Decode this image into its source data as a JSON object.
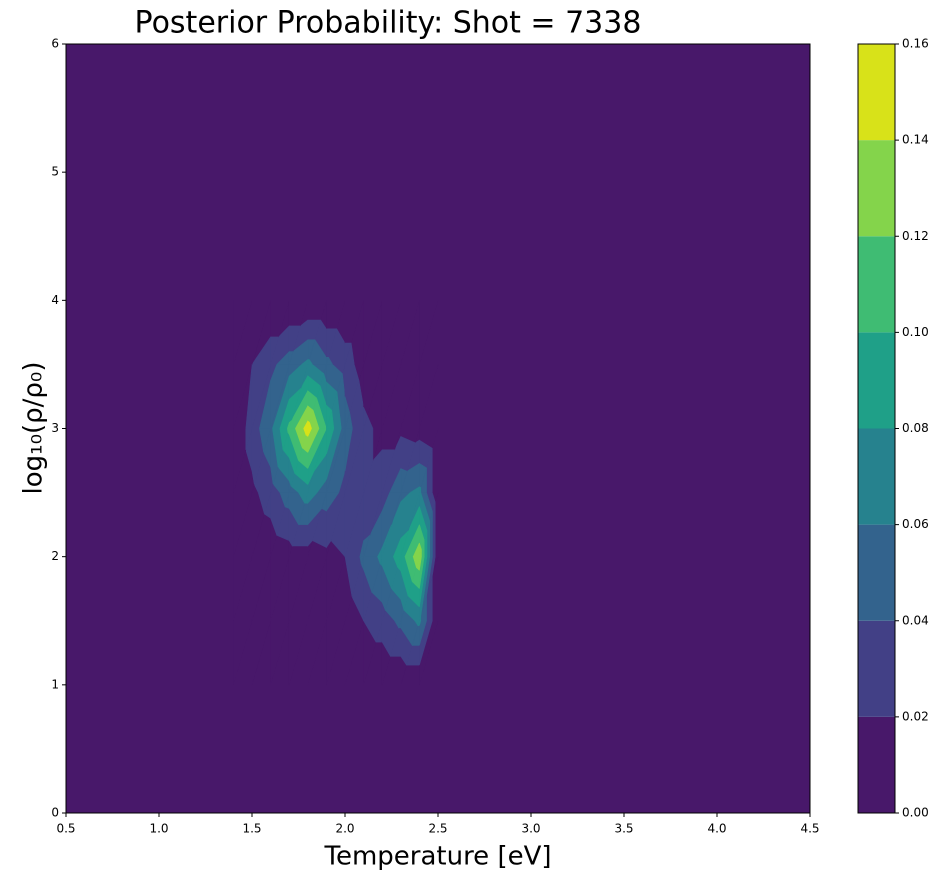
{
  "chart_data": {
    "type": "contourf",
    "title": "Posterior Probability: Shot = 7338",
    "xlabel": "Temperature [eV]",
    "ylabel": "log₁₀(ρ/ρ₀)",
    "x": [
      1.4,
      1.5,
      1.6,
      1.7,
      1.8,
      1.9,
      2.0,
      2.1,
      2.2,
      2.3,
      2.4,
      2.5
    ],
    "y": [
      1,
      1.5,
      2,
      2.5,
      3,
      3.5,
      4
    ],
    "z": [
      [
        0,
        0,
        0,
        0,
        0,
        0,
        0,
        0,
        0,
        0,
        0,
        0
      ],
      [
        0,
        0,
        0,
        0,
        0,
        0,
        0.005,
        0.02,
        0.03,
        0.045,
        0.065,
        0
      ],
      [
        0,
        0,
        0.005,
        0.01,
        0.01,
        0.015,
        0.02,
        0.045,
        0.065,
        0.09,
        0.135,
        0
      ],
      [
        0,
        0.015,
        0.03,
        0.05,
        0.07,
        0.05,
        0.035,
        0.025,
        0.03,
        0.055,
        0.065,
        0
      ],
      [
        0,
        0.03,
        0.055,
        0.105,
        0.15,
        0.1,
        0.05,
        0.025,
        0.015,
        0.015,
        0.01,
        0
      ],
      [
        0,
        0.02,
        0.035,
        0.05,
        0.065,
        0.045,
        0.03,
        0.01,
        0,
        0,
        0,
        0
      ],
      [
        0,
        0,
        0,
        0,
        0,
        0,
        0,
        0,
        0,
        0,
        0,
        0
      ]
    ],
    "levels": [
      {
        "value": 0,
        "label": "0.00"
      },
      0.02,
      0.04,
      0.06,
      0.08,
      {
        "value": 0.1,
        "label": "0.10"
      },
      0.12,
      0.14,
      0.16
    ],
    "colors": [
      "#48186a",
      "#424086",
      "#33638d",
      "#26828e",
      "#1fa088",
      "#3fbc73",
      "#84d44b",
      "#d8e219"
    ],
    "xlim": [
      0.5,
      4.5
    ],
    "ylim": [
      0,
      6
    ],
    "xticks": [
      0.5,
      {
        "value": 1,
        "label": "1.0"
      },
      1.5,
      {
        "value": 2,
        "label": "2.0"
      },
      2.5,
      {
        "value": 3,
        "label": "3.0"
      },
      3.5,
      {
        "value": 4,
        "label": "4.0"
      },
      4.5
    ],
    "yticks": [
      0,
      1,
      2,
      3,
      4,
      5,
      6
    ]
  }
}
